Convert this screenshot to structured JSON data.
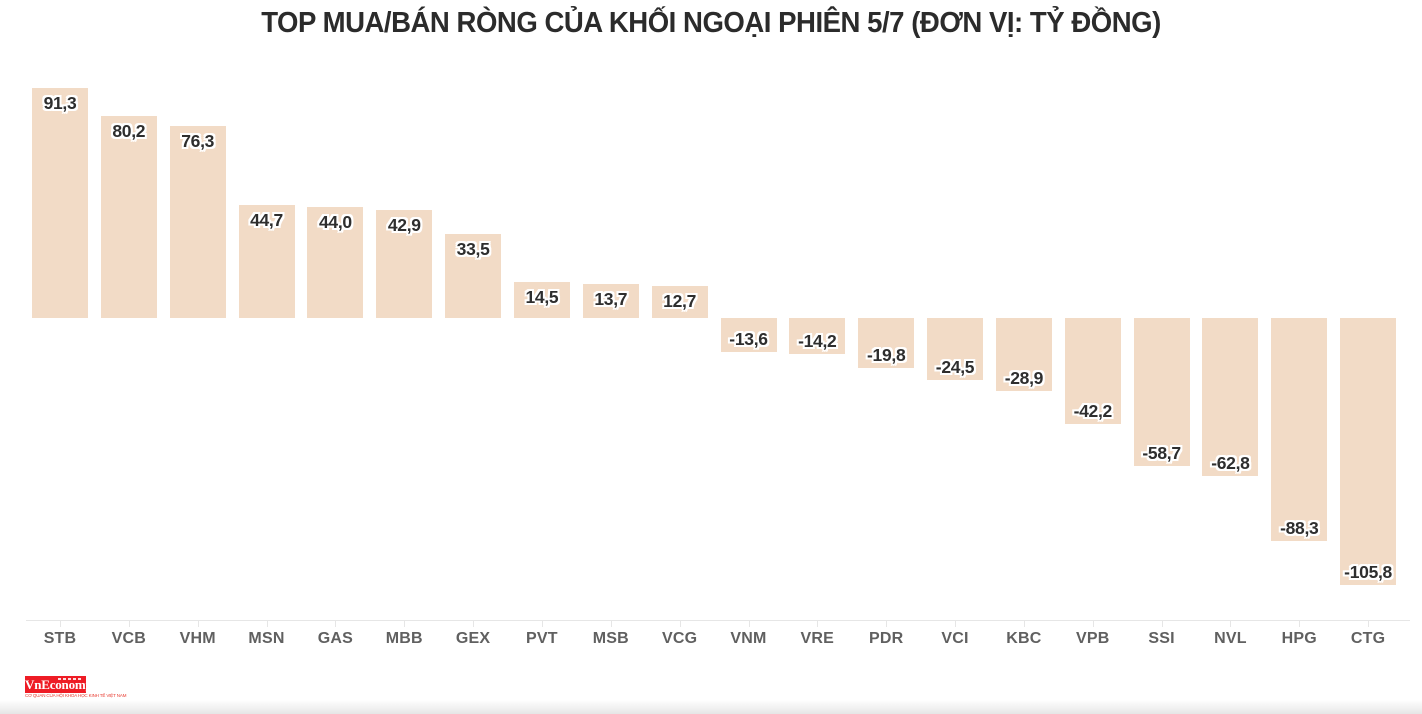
{
  "title": "TOP MUA/BÁN RÒNG CỦA KHỐI NGOẠI PHIÊN 5/7 (ĐƠN VỊ: TỶ ĐỒNG)",
  "chart_data": {
    "type": "bar",
    "title": "TOP MUA/BÁN RÒNG CỦA KHỐI NGOẠI PHIÊN 5/7",
    "unit_note": "ĐƠN VỊ: TỶ ĐỒNG",
    "categories": [
      "STB",
      "VCB",
      "VHM",
      "MSN",
      "GAS",
      "MBB",
      "GEX",
      "PVT",
      "MSB",
      "VCG",
      "VNM",
      "VRE",
      "PDR",
      "VCI",
      "KBC",
      "VPB",
      "SSI",
      "NVL",
      "HPG",
      "CTG"
    ],
    "values": [
      91.3,
      80.2,
      76.3,
      44.7,
      44.0,
      42.9,
      33.5,
      14.5,
      13.7,
      12.7,
      -13.6,
      -14.2,
      -19.8,
      -24.5,
      -28.9,
      -42.2,
      -58.7,
      -62.8,
      -88.3,
      -105.8
    ],
    "value_label_format": "comma-decimal",
    "xlabel": "",
    "ylabel": "",
    "ylim": [
      -120,
      100
    ],
    "grid": false,
    "legend": false,
    "bar_color": "#f2dbc6",
    "label_color": "#2e2e2e",
    "axis_color": "#e6e6e6",
    "category_label_color": "#606060"
  },
  "footer": {
    "logo_text": "VnEconomy",
    "logo_bg": "#ee1c25",
    "slogan": "CƠ QUAN CỦA HỘI KHOA HỌC KINH TẾ VIỆT NAM",
    "slogan_color": "#e8392e"
  }
}
